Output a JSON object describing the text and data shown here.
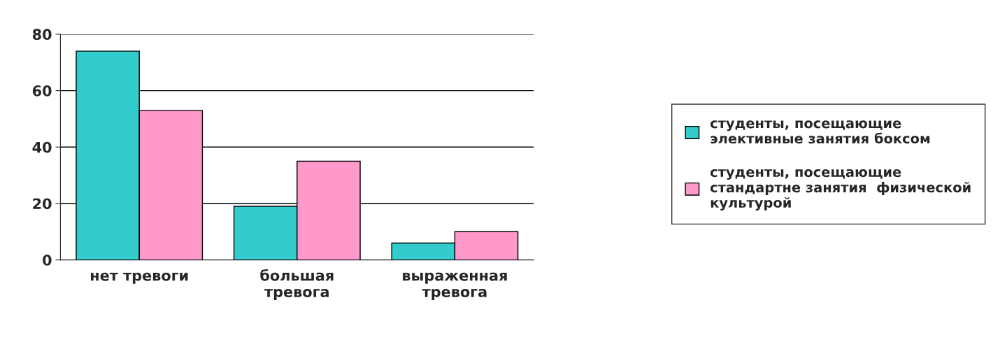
{
  "chart_data": {
    "type": "bar",
    "categories": [
      "нет тревоги",
      "большая\nтревога",
      "выраженная\nтревога"
    ],
    "series": [
      {
        "name": "студенты, посещающие\nэлективные занятия боксом",
        "color": "#33cccc",
        "values": [
          74,
          19,
          6
        ]
      },
      {
        "name": "студенты, посещающие\nстандартне занятия  физической\nкультурой",
        "color": "#ff99cc",
        "values": [
          53,
          35,
          10
        ]
      }
    ],
    "ylim": [
      0,
      80
    ],
    "yticks": [
      0,
      20,
      40,
      60,
      80
    ],
    "grid": "y",
    "legend": "right"
  }
}
